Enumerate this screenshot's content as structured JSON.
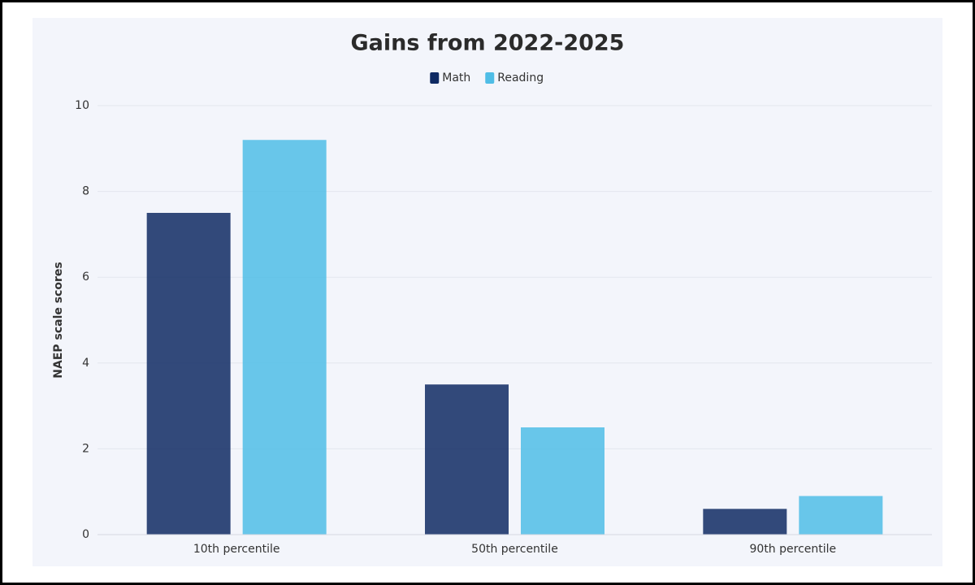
{
  "chart_data": {
    "type": "bar",
    "title": "Gains from 2022-2025",
    "y_label": "NAEP scale scores",
    "categories": [
      "10th percentile",
      "50th percentile",
      "90th percentile"
    ],
    "series": [
      {
        "name": "Math",
        "color": "#0f2a63",
        "values": [
          7.5,
          3.5,
          0.6
        ]
      },
      {
        "name": "Reading",
        "color": "#4fbde6",
        "values": [
          9.2,
          2.5,
          0.9
        ]
      }
    ],
    "ylim": [
      0,
      10
    ],
    "yticks": [
      0,
      2,
      4,
      6,
      8,
      10
    ],
    "grid": true,
    "legend": "top"
  }
}
